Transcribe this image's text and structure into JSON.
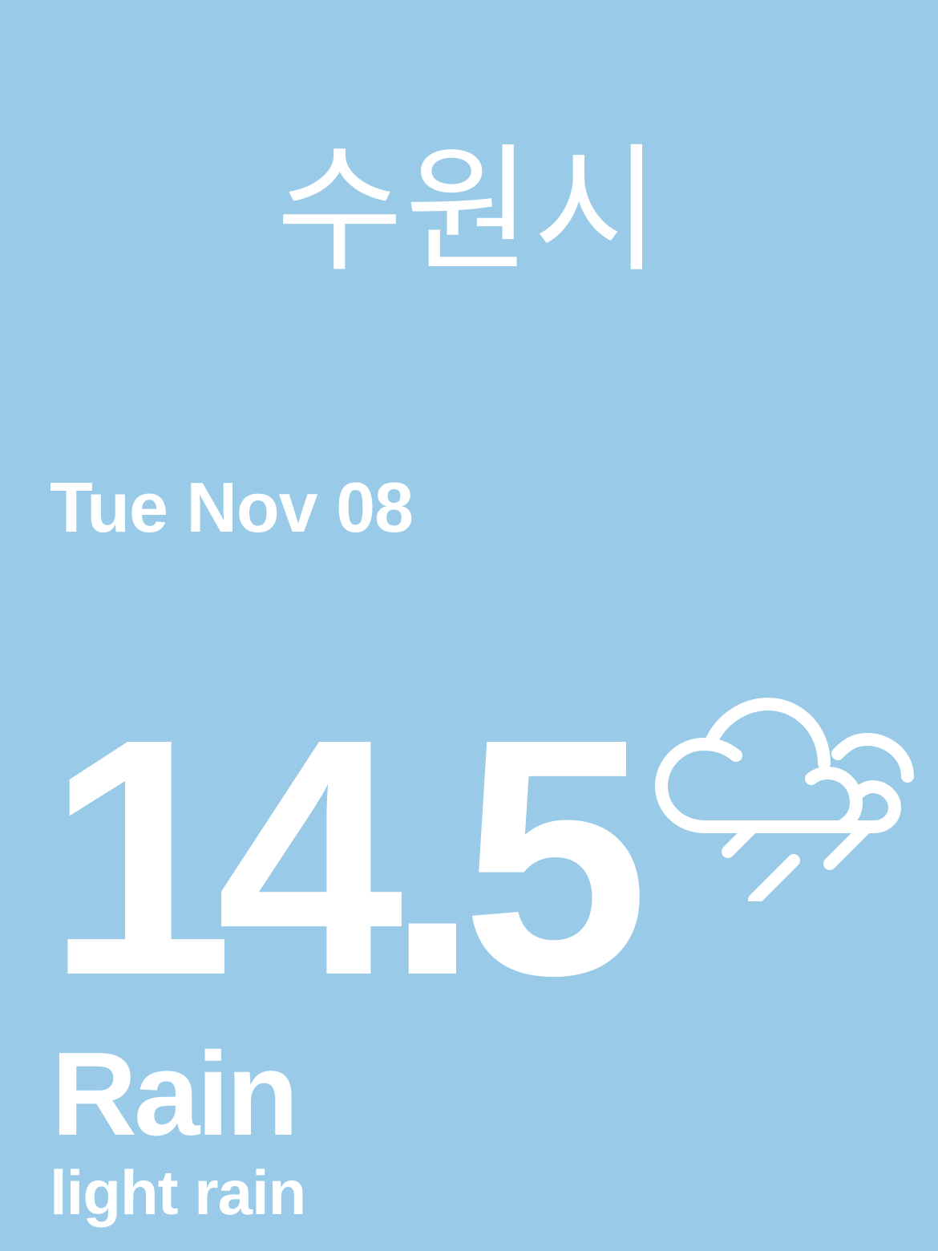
{
  "location": {
    "city": "수원시"
  },
  "forecast": {
    "date": "Tue Nov 08",
    "temperature": "14.5",
    "condition": "Rain",
    "description": "light rain",
    "icon": "cloud-rain-icon"
  },
  "theme": {
    "background": "#99cbe8",
    "foreground": "#ffffff"
  }
}
